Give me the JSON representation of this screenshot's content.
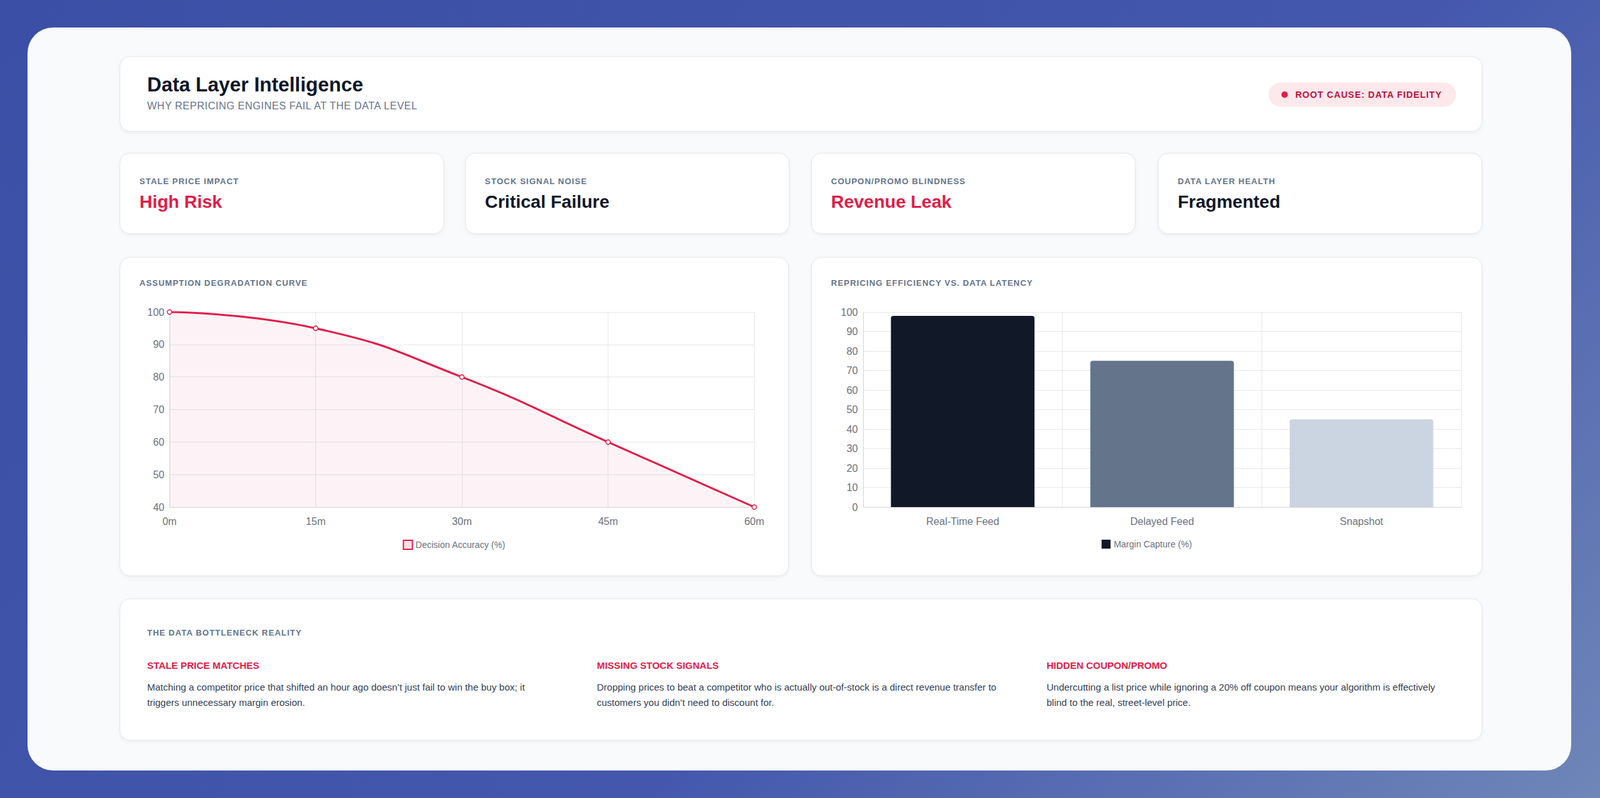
{
  "header": {
    "title": "Data Layer Intelligence",
    "subtitle": "WHY REPRICING ENGINES FAIL AT THE DATA LEVEL",
    "badge": "ROOT CAUSE: DATA FIDELITY"
  },
  "cards": [
    {
      "label": "STALE PRICE IMPACT",
      "value": "High Risk",
      "color": "#e11d48"
    },
    {
      "label": "STOCK SIGNAL NOISE",
      "value": "Critical Failure",
      "color": "#0f172a"
    },
    {
      "label": "COUPON/PROMO BLINDNESS",
      "value": "Revenue Leak",
      "color": "#e11d48"
    },
    {
      "label": "DATA LAYER HEALTH",
      "value": "Fragmented",
      "color": "#0f172a"
    }
  ],
  "chart_data": [
    {
      "type": "area",
      "title": "ASSUMPTION DEGRADATION CURVE",
      "categories": [
        "0m",
        "15m",
        "30m",
        "45m",
        "60m"
      ],
      "series": [
        {
          "name": "Decision Accuracy (%)",
          "color": "#e11d48",
          "values": [
            100,
            95,
            80,
            60,
            40
          ],
          "marker": "circle",
          "line_style": "solid"
        }
      ],
      "ylim": [
        40,
        100
      ],
      "yticks": [
        40,
        50,
        60,
        70,
        80,
        90,
        100
      ],
      "grid": true,
      "legend": "bottom"
    },
    {
      "type": "bar",
      "title": "REPRICING EFFICIENCY VS. DATA LATENCY",
      "categories": [
        "Real-Time Feed",
        "Delayed Feed",
        "Snapshot"
      ],
      "series": [
        {
          "name": "Margin Capture (%)",
          "values": [
            98,
            75,
            45
          ],
          "colors": [
            "#111827",
            "#64748b",
            "#cbd5e1"
          ]
        }
      ],
      "ylim": [
        0,
        100
      ],
      "yticks": [
        0,
        10,
        20,
        30,
        40,
        50,
        60,
        70,
        80,
        90,
        100
      ],
      "grid": true,
      "legend": "bottom"
    }
  ],
  "notes": {
    "title": "THE DATA BOTTLENECK REALITY",
    "items": [
      {
        "title": "STALE PRICE MATCHES",
        "text": "Matching a competitor price that shifted an hour ago doesn’t just fail to win the buy box; it triggers unnecessary margin erosion."
      },
      {
        "title": "MISSING STOCK SIGNALS",
        "text": "Dropping prices to beat a competitor who is actually out-of-stock is a direct revenue transfer to customers you didn’t need to discount for."
      },
      {
        "title": "HIDDEN COUPON/PROMO",
        "text": "Undercutting a list price while ignoring a 20% off coupon means your algorithm is effectively blind to the real, street-level price."
      }
    ]
  }
}
